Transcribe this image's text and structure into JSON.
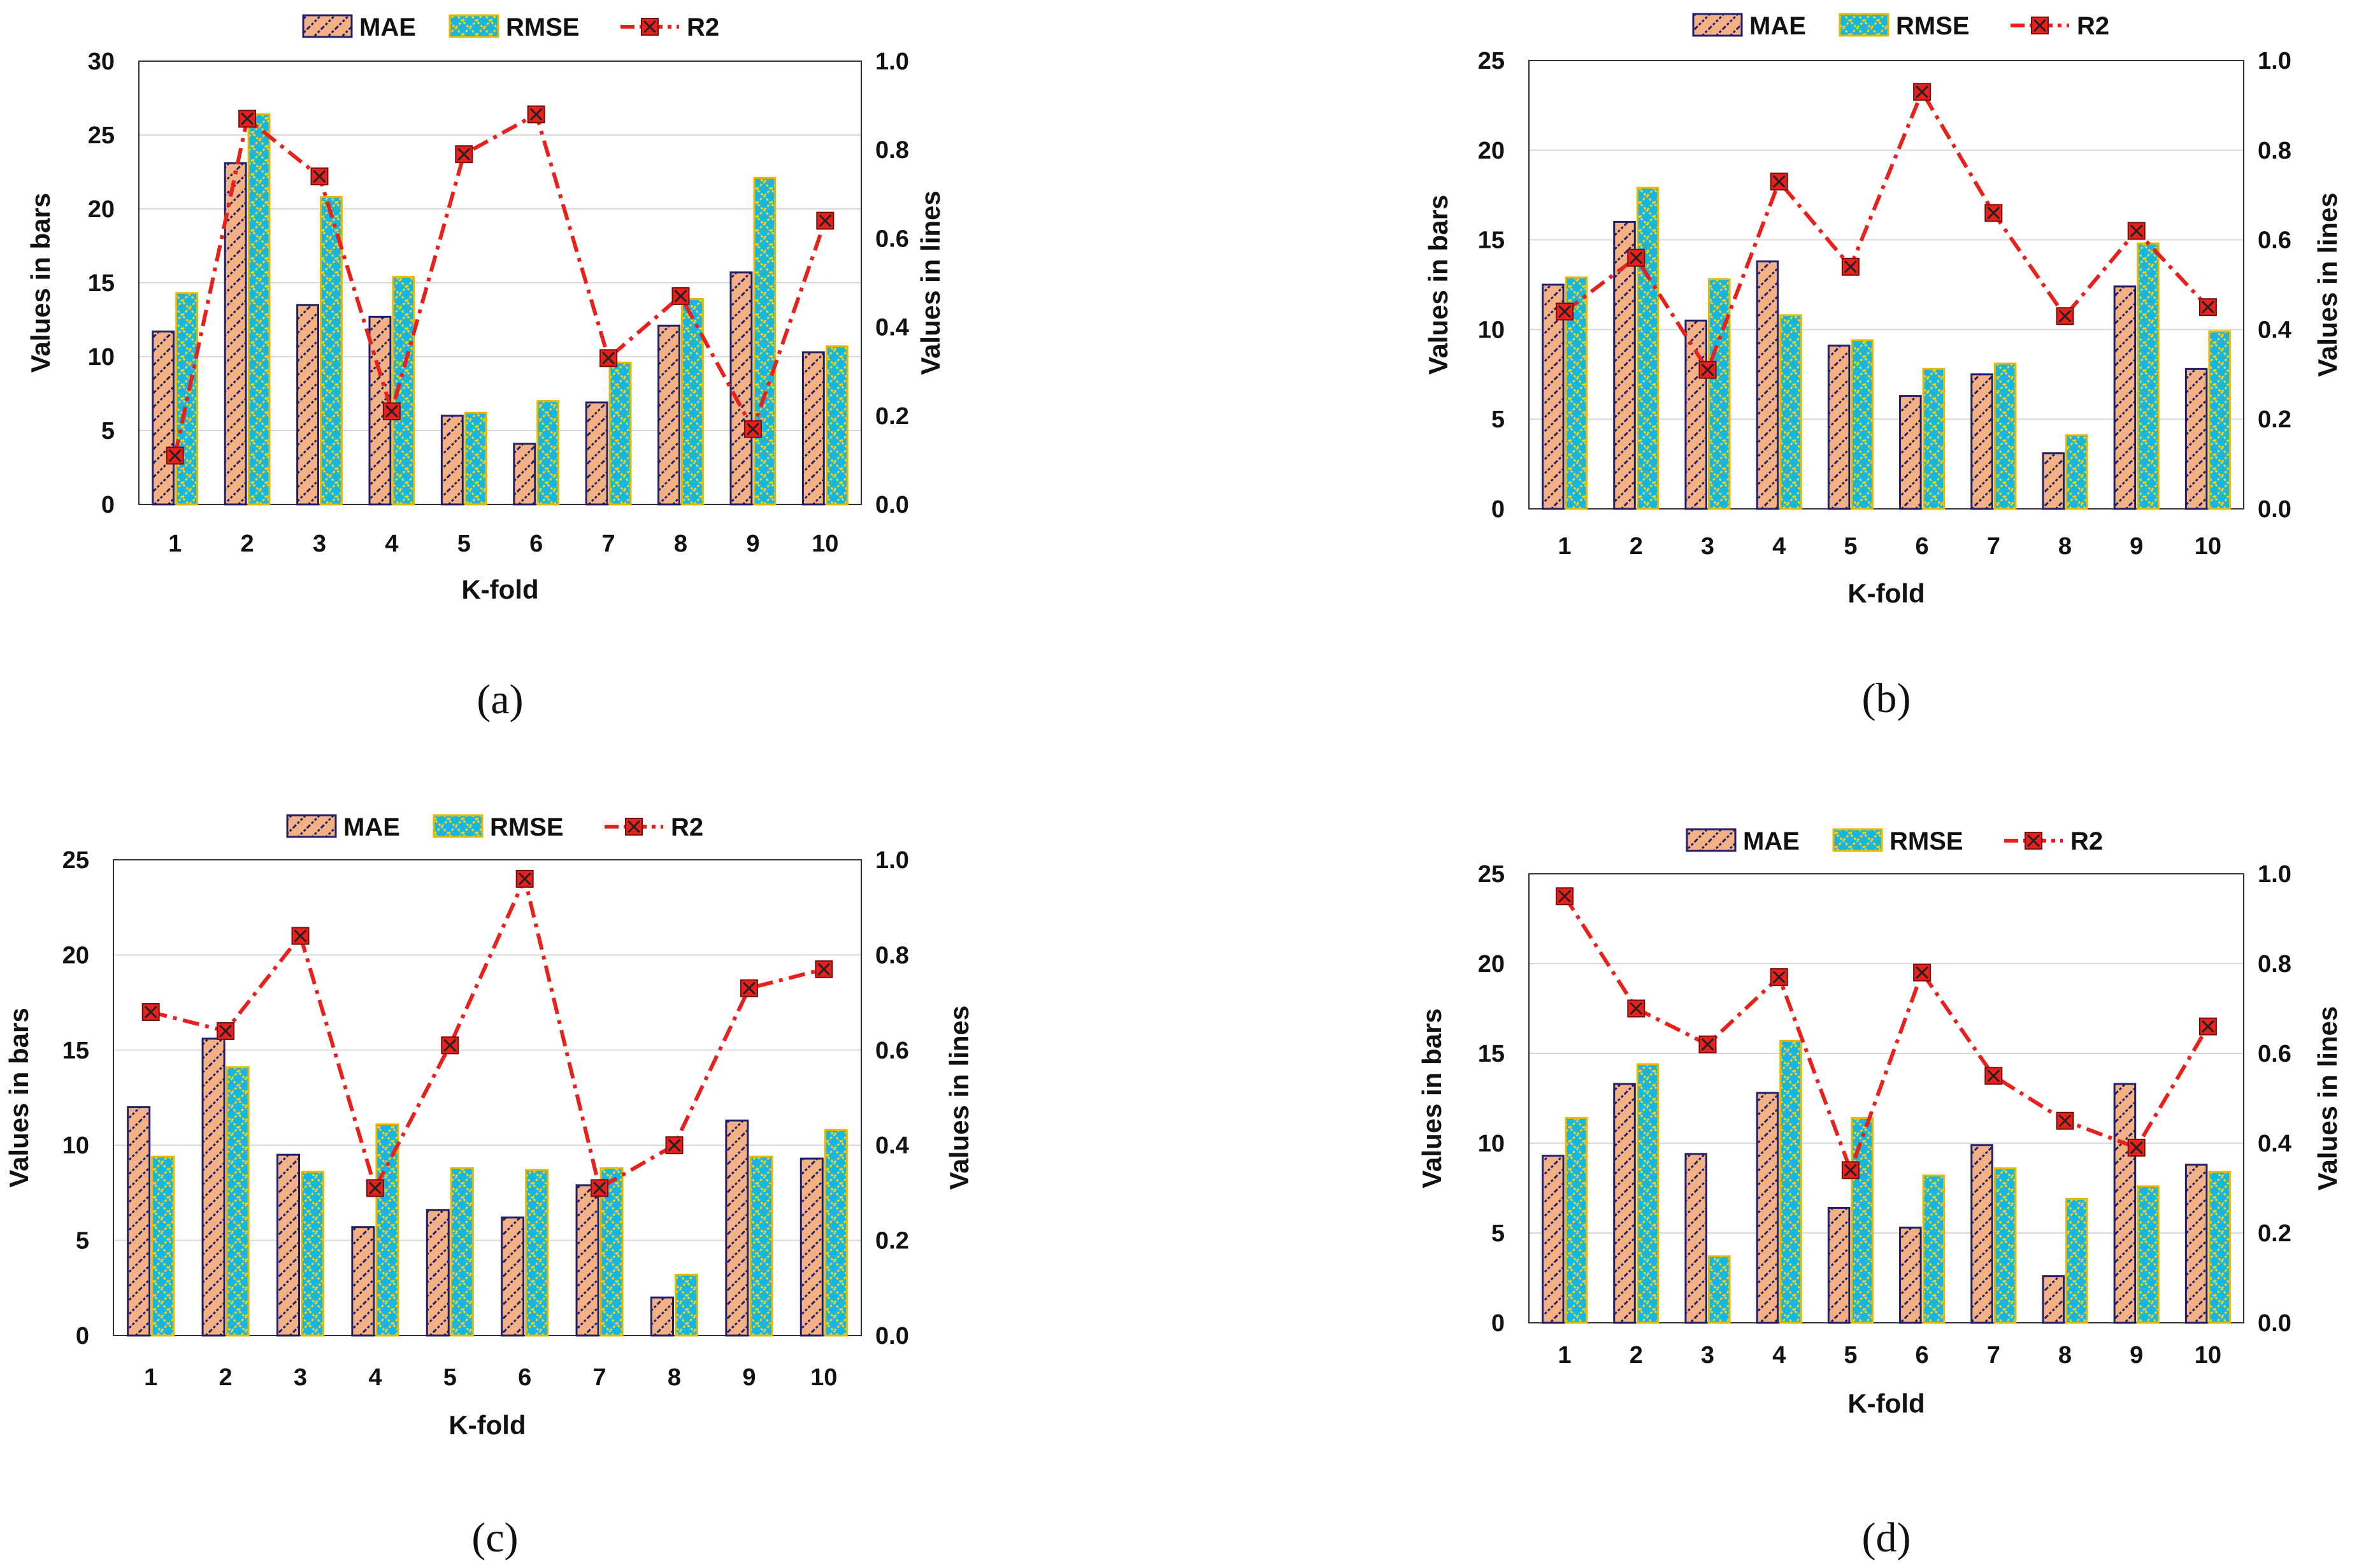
{
  "figure": {
    "colors": {
      "mae_fill": "#F4B183",
      "mae_hatch": "#1F1F6B",
      "mae_border": "#1F1F6B",
      "rmse_fill": "#17B6E0",
      "rmse_hatch": "#F2D21C",
      "rmse_border": "#E6B800",
      "r2_line": "#E8211D",
      "r2_marker_fill": "#E8211D",
      "r2_marker_x": "#222222",
      "grid": "#D9D9D9"
    }
  },
  "chart_data": [
    {
      "panel": "(a)",
      "type": "bar+line",
      "categories": [
        "1",
        "2",
        "3",
        "4",
        "5",
        "6",
        "7",
        "8",
        "9",
        "10"
      ],
      "series": [
        {
          "name": "MAE",
          "axis": "left",
          "kind": "bar",
          "values": [
            11.7,
            23.1,
            13.5,
            12.7,
            6.0,
            4.1,
            6.9,
            12.1,
            15.7,
            10.3
          ]
        },
        {
          "name": "RMSE",
          "axis": "left",
          "kind": "bar",
          "values": [
            14.3,
            26.4,
            20.8,
            15.4,
            6.2,
            7.0,
            9.6,
            13.9,
            22.1,
            10.7
          ]
        },
        {
          "name": "R2",
          "axis": "right",
          "kind": "line",
          "values": [
            0.11,
            0.87,
            0.74,
            0.21,
            0.79,
            0.88,
            0.33,
            0.47,
            0.17,
            0.64
          ]
        }
      ],
      "xlabel": "K-fold",
      "ylabel": "Values in bars",
      "y2label": "Values in lines",
      "ylim": [
        0,
        30
      ],
      "yticks": [
        "0",
        "5",
        "10",
        "15",
        "20",
        "25",
        "30"
      ],
      "y2lim": [
        0.0,
        1.0
      ],
      "y2ticks": [
        "0.0",
        "0.2",
        "0.4",
        "0.6",
        "0.8",
        "1.0"
      ],
      "grid": true,
      "legend": "top-center"
    },
    {
      "panel": "(b)",
      "type": "bar+line",
      "categories": [
        "1",
        "2",
        "3",
        "4",
        "5",
        "6",
        "7",
        "8",
        "9",
        "10"
      ],
      "series": [
        {
          "name": "MAE",
          "axis": "left",
          "kind": "bar",
          "values": [
            12.5,
            16.0,
            10.5,
            13.8,
            9.1,
            6.3,
            7.5,
            3.1,
            12.4,
            7.8
          ]
        },
        {
          "name": "RMSE",
          "axis": "left",
          "kind": "bar",
          "values": [
            12.9,
            17.9,
            12.8,
            10.8,
            9.4,
            7.8,
            8.1,
            4.1,
            14.8,
            9.9
          ]
        },
        {
          "name": "R2",
          "axis": "right",
          "kind": "line",
          "values": [
            0.44,
            0.56,
            0.31,
            0.73,
            0.54,
            0.93,
            0.66,
            0.43,
            0.62,
            0.45
          ]
        }
      ],
      "xlabel": "K-fold",
      "ylabel": "Values in bars",
      "y2label": "Values in lines",
      "ylim": [
        0,
        25
      ],
      "yticks": [
        "0",
        "5",
        "10",
        "15",
        "20",
        "25"
      ],
      "y2lim": [
        0.0,
        1.0
      ],
      "y2ticks": [
        "0.0",
        "0.2",
        "0.4",
        "0.6",
        "0.8",
        "1.0"
      ],
      "grid": true,
      "legend": "top-center"
    },
    {
      "panel": "(c)",
      "type": "bar+line",
      "categories": [
        "1",
        "2",
        "3",
        "4",
        "5",
        "6",
        "7",
        "8",
        "9",
        "10"
      ],
      "series": [
        {
          "name": "MAE",
          "axis": "left",
          "kind": "bar",
          "values": [
            12.0,
            15.6,
            9.5,
            5.7,
            6.6,
            6.2,
            7.9,
            2.0,
            11.3,
            9.3
          ]
        },
        {
          "name": "RMSE",
          "axis": "left",
          "kind": "bar",
          "values": [
            9.4,
            14.1,
            8.6,
            11.1,
            8.8,
            8.7,
            8.8,
            3.2,
            9.4,
            10.8
          ]
        },
        {
          "name": "R2",
          "axis": "right",
          "kind": "line",
          "values": [
            0.68,
            0.64,
            0.84,
            0.31,
            0.61,
            0.96,
            0.31,
            0.4,
            0.73,
            0.77
          ]
        }
      ],
      "xlabel": "K-fold",
      "ylabel": "Values in bars",
      "y2label": "Values in lines",
      "ylim": [
        0,
        25
      ],
      "yticks": [
        "0",
        "5",
        "10",
        "15",
        "20",
        "25"
      ],
      "y2lim": [
        0.0,
        1.0
      ],
      "y2ticks": [
        "0.0",
        "0.2",
        "0.4",
        "0.6",
        "0.8",
        "1.0"
      ],
      "grid": true,
      "legend": "top-center"
    },
    {
      "panel": "(d)",
      "type": "bar+line",
      "categories": [
        "1",
        "2",
        "3",
        "4",
        "5",
        "6",
        "7",
        "8",
        "9",
        "10"
      ],
      "series": [
        {
          "name": "MAE",
          "axis": "left",
          "kind": "bar",
          "values": [
            9.3,
            13.3,
            9.4,
            12.8,
            6.4,
            5.3,
            9.9,
            2.6,
            13.3,
            8.8
          ]
        },
        {
          "name": "RMSE",
          "axis": "left",
          "kind": "bar",
          "values": [
            11.4,
            14.4,
            3.7,
            15.7,
            11.4,
            8.2,
            8.6,
            6.9,
            7.6,
            8.4
          ]
        },
        {
          "name": "R2",
          "axis": "right",
          "kind": "line",
          "values": [
            0.95,
            0.7,
            0.62,
            0.77,
            0.34,
            0.78,
            0.55,
            0.45,
            0.39,
            0.66
          ]
        }
      ],
      "xlabel": "K-fold",
      "ylabel": "Values in bars",
      "y2label": "Values in lines",
      "ylim": [
        0,
        25
      ],
      "yticks": [
        "0",
        "5",
        "10",
        "15",
        "20",
        "25"
      ],
      "y2lim": [
        0.0,
        1.0
      ],
      "y2ticks": [
        "0.0",
        "0.2",
        "0.4",
        "0.6",
        "0.8",
        "1.0"
      ],
      "grid": true,
      "legend": "top-center"
    }
  ]
}
